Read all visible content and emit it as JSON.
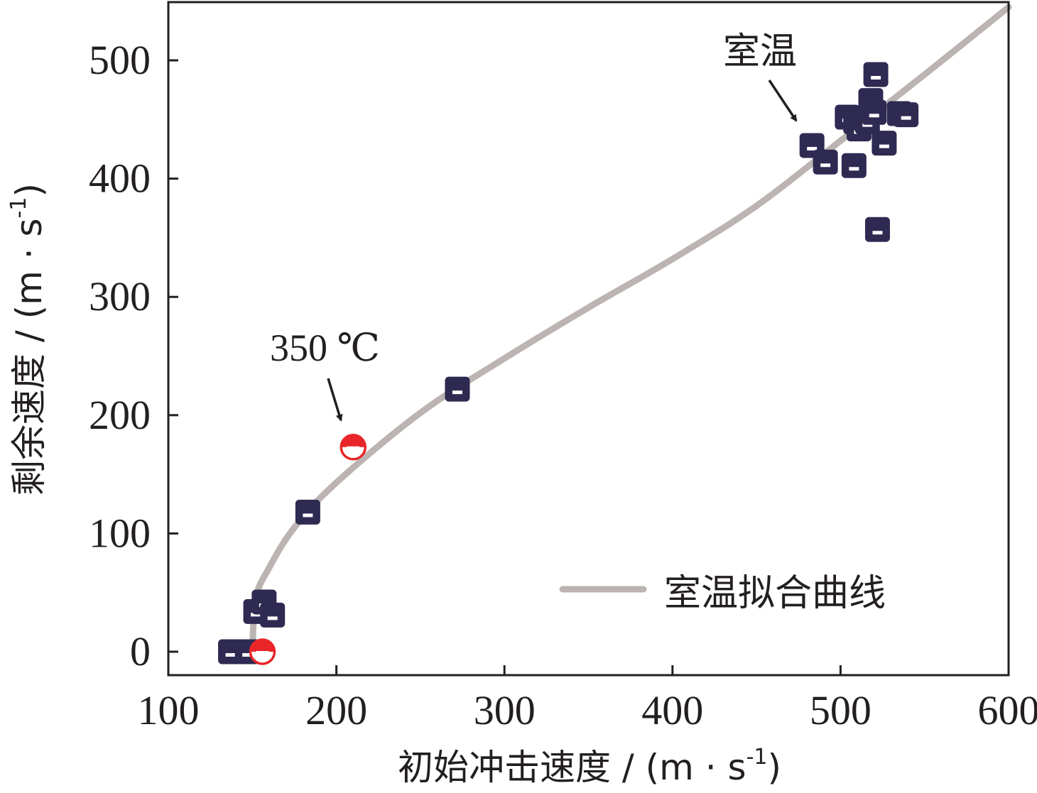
{
  "chart_data": {
    "type": "scatter",
    "title": "",
    "xlabel": "初始冲击速度 / (m · s",
    "xlabel_sup": "-1",
    "xlabel_end": ")",
    "ylabel": "剩余速度 / (m · s",
    "ylabel_sup": "-1",
    "ylabel_end": ")",
    "xlim": [
      100,
      600
    ],
    "ylim": [
      -20,
      550
    ],
    "xticks": [
      100,
      200,
      300,
      400,
      500,
      600
    ],
    "yticks": [
      0,
      100,
      200,
      300,
      400,
      500
    ],
    "grid": false,
    "legend_position": "bottom-right",
    "series": [
      {
        "marker": "half-filled-square",
        "color": "#2e2a52",
        "points": [
          [
            137,
            0
          ],
          [
            147,
            0
          ],
          [
            152,
            34
          ],
          [
            157,
            42
          ],
          [
            162,
            31
          ],
          [
            183,
            118
          ],
          [
            272,
            222
          ],
          [
            483,
            428
          ],
          [
            491,
            414
          ],
          [
            504,
            452
          ],
          [
            508,
            411
          ],
          [
            509,
            448
          ],
          [
            511,
            442
          ],
          [
            516,
            448
          ],
          [
            518,
            466
          ],
          [
            520,
            456
          ],
          [
            521,
            488
          ],
          [
            522,
            357
          ],
          [
            526,
            430
          ],
          [
            535,
            455
          ],
          [
            539,
            454
          ]
        ]
      },
      {
        "marker": "half-filled-circle",
        "color": "#e8262a",
        "points": [
          [
            156,
            0
          ],
          [
            210,
            173
          ]
        ]
      }
    ],
    "fit_curve": {
      "name": "室温拟合曲线",
      "color": "#bcb4b2",
      "points": [
        [
          150,
          0
        ],
        [
          152,
          45
        ],
        [
          160,
          71
        ],
        [
          175,
          105
        ],
        [
          200,
          143
        ],
        [
          250,
          202
        ],
        [
          300,
          248
        ],
        [
          350,
          291
        ],
        [
          400,
          332
        ],
        [
          450,
          377
        ],
        [
          500,
          432
        ],
        [
          550,
          488
        ],
        [
          600,
          545
        ]
      ]
    },
    "annotations": [
      {
        "text": "室温",
        "target": [
          478,
          438
        ]
      },
      {
        "text": "350 ℃",
        "target": [
          205,
          198
        ]
      }
    ]
  },
  "colors": {
    "axis": "#231f20",
    "square_marker": "#2e2a52",
    "circle_marker": "#e8262a",
    "fit_line": "#bcb4b2"
  }
}
